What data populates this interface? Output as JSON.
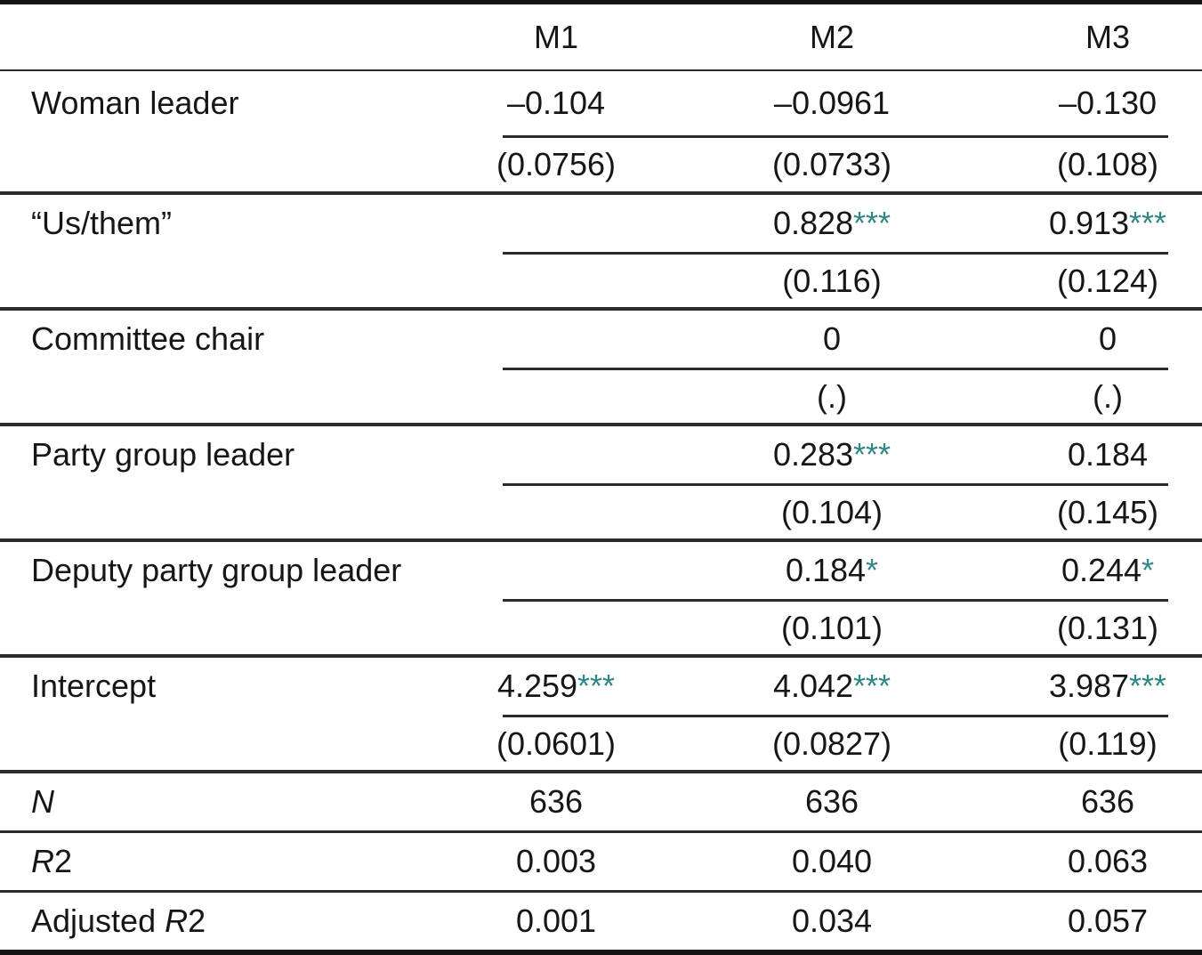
{
  "theme": {
    "star_color": "#318787",
    "line_color": "#2b2b2b",
    "heavy_line_color": "#141414",
    "text_color": "#161616",
    "background": "#ffffff"
  },
  "table": {
    "columns": {
      "stub": "",
      "m1": "M1",
      "m2": "M2",
      "m3": "M3"
    },
    "groups": [
      {
        "label": "Woman leader",
        "coefs": [
          {
            "v": "–0.104",
            "s": ""
          },
          {
            "v": "–0.0961",
            "s": ""
          },
          {
            "v": "–0.130",
            "s": ""
          }
        ],
        "ses": [
          "(0.0756)",
          "(0.0733)",
          "(0.108)"
        ]
      },
      {
        "label": "“Us/them”",
        "coefs": [
          {
            "v": "",
            "s": ""
          },
          {
            "v": "0.828",
            "s": "***"
          },
          {
            "v": "0.913",
            "s": "***"
          }
        ],
        "ses": [
          "",
          "(0.116)",
          "(0.124)"
        ]
      },
      {
        "label": "Committee chair",
        "coefs": [
          {
            "v": "",
            "s": ""
          },
          {
            "v": "0",
            "s": ""
          },
          {
            "v": "0",
            "s": ""
          }
        ],
        "ses": [
          "",
          "(.)",
          "(.)"
        ]
      },
      {
        "label": "Party group leader",
        "coefs": [
          {
            "v": "",
            "s": ""
          },
          {
            "v": "0.283",
            "s": "***"
          },
          {
            "v": "0.184",
            "s": ""
          }
        ],
        "ses": [
          "",
          "(0.104)",
          "(0.145)"
        ]
      },
      {
        "label": "Deputy party group leader",
        "coefs": [
          {
            "v": "",
            "s": ""
          },
          {
            "v": "0.184",
            "s": "*"
          },
          {
            "v": "0.244",
            "s": "*"
          }
        ],
        "ses": [
          "",
          "(0.101)",
          "(0.131)"
        ]
      },
      {
        "label": "Intercept",
        "coefs": [
          {
            "v": "4.259",
            "s": "***"
          },
          {
            "v": "4.042",
            "s": "***"
          },
          {
            "v": "3.987",
            "s": "***"
          }
        ],
        "ses": [
          "(0.0601)",
          "(0.0827)",
          "(0.119)"
        ]
      }
    ],
    "stats": [
      {
        "pre": "",
        "it": "N",
        "post": "",
        "values": [
          "636",
          "636",
          "636"
        ]
      },
      {
        "pre": "",
        "it": "R",
        "post": "2",
        "values": [
          "0.003",
          "0.040",
          "0.063"
        ]
      },
      {
        "pre": "Adjusted ",
        "it": "R",
        "post": "2",
        "values": [
          "0.001",
          "0.034",
          "0.057"
        ]
      }
    ]
  }
}
